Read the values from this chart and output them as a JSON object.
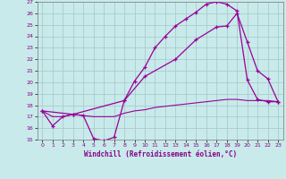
{
  "xlabel": "Windchill (Refroidissement éolien,°C)",
  "bg_color": "#c8eaea",
  "line_color": "#990099",
  "grid_color": "#aacccc",
  "text_color": "#880088",
  "spine_color": "#888888",
  "xlim": [
    -0.5,
    23.5
  ],
  "ylim": [
    15,
    27
  ],
  "yticks": [
    15,
    16,
    17,
    18,
    19,
    20,
    21,
    22,
    23,
    24,
    25,
    26,
    27
  ],
  "xticks": [
    0,
    1,
    2,
    3,
    4,
    5,
    6,
    7,
    8,
    9,
    10,
    11,
    12,
    13,
    14,
    15,
    16,
    17,
    18,
    19,
    20,
    21,
    22,
    23
  ],
  "line1_x": [
    0,
    1,
    2,
    3,
    4,
    5,
    6,
    7,
    8,
    9,
    10,
    11,
    12,
    13,
    14,
    15,
    16,
    17,
    18,
    19,
    20,
    21,
    22,
    23
  ],
  "line1_y": [
    17.5,
    16.2,
    17.0,
    17.2,
    17.1,
    15.1,
    14.9,
    15.2,
    18.4,
    20.1,
    21.3,
    23.0,
    24.0,
    24.9,
    25.5,
    26.1,
    26.8,
    27.0,
    26.8,
    26.2,
    20.2,
    18.5,
    18.3,
    18.3
  ],
  "line2_x": [
    0,
    3,
    8,
    10,
    13,
    15,
    17,
    18,
    19,
    20,
    21,
    22,
    23
  ],
  "line2_y": [
    17.5,
    17.2,
    18.4,
    20.5,
    22.0,
    23.7,
    24.8,
    24.9,
    26.0,
    23.5,
    21.0,
    20.3,
    18.3
  ],
  "line3_x": [
    0,
    1,
    2,
    3,
    4,
    5,
    6,
    7,
    8,
    9,
    10,
    11,
    12,
    13,
    14,
    15,
    16,
    17,
    18,
    19,
    20,
    21,
    22,
    23
  ],
  "line3_y": [
    17.5,
    17.0,
    17.0,
    17.2,
    17.1,
    17.0,
    17.0,
    17.0,
    17.3,
    17.5,
    17.6,
    17.8,
    17.9,
    18.0,
    18.1,
    18.2,
    18.3,
    18.4,
    18.5,
    18.5,
    18.4,
    18.4,
    18.4,
    18.3
  ]
}
